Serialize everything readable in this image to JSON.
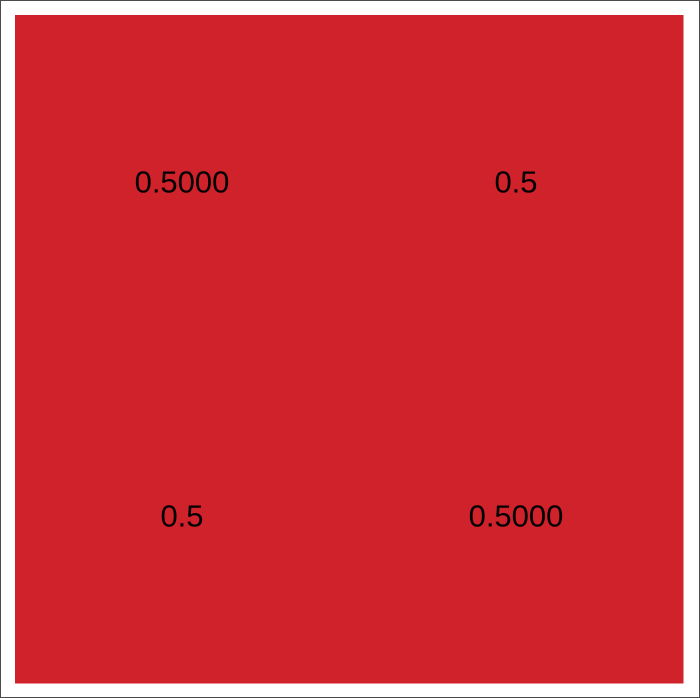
{
  "chart_data": {
    "type": "heatmap",
    "rows": 2,
    "cols": 2,
    "values": [
      [
        0.5,
        0.5
      ],
      [
        0.5,
        0.5
      ]
    ],
    "cell_labels": [
      [
        "0.5000",
        "0.5"
      ],
      [
        "0.5",
        "0.5000"
      ]
    ],
    "cell_color": "#d0222a",
    "label_color": "#000000",
    "frame_color": "#4a4a4a",
    "grid": false,
    "legend": "none",
    "title": "",
    "xlabel": "",
    "ylabel": ""
  }
}
